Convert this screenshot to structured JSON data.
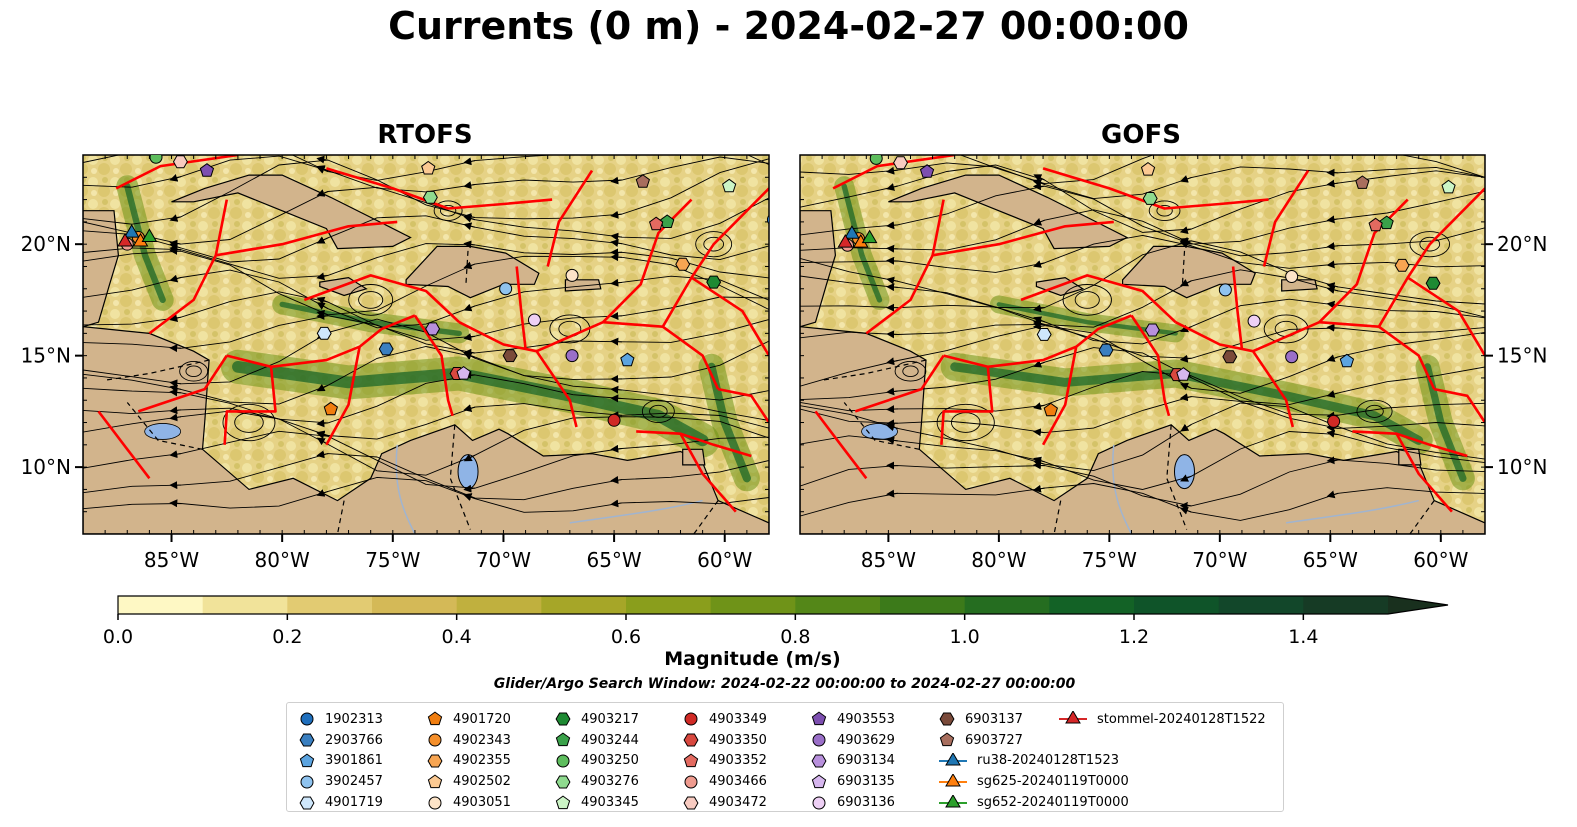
{
  "title": "Currents (0 m) - 2024-02-27 00:00:00",
  "panels": [
    {
      "name": "RTOFS"
    },
    {
      "name": "GOFS"
    }
  ],
  "colors": {
    "land": "#d2b48c",
    "boundary": "#ff0000",
    "lake": "#8fb4e6",
    "river": "#a0b4d0",
    "streamline": "#000000"
  },
  "chart_data": {
    "type": "heatmap",
    "description_of_axes": "geographic map",
    "xlim": [
      -89,
      -58
    ],
    "ylim": [
      7,
      24
    ],
    "x_ticks": [
      "85°W",
      "80°W",
      "75°W",
      "70°W",
      "65°W",
      "60°W"
    ],
    "x_tick_values": [
      -85,
      -80,
      -75,
      -70,
      -65,
      -60
    ],
    "y_ticks": [
      "10°N",
      "15°N",
      "20°N"
    ],
    "y_tick_values": [
      10,
      15,
      20
    ],
    "colorbar": {
      "label": "Magnitude (m/s)",
      "range": [
        0.0,
        1.5
      ],
      "step": 0.1,
      "extend": "max",
      "tick_labels": [
        "0.0",
        "0.2",
        "0.4",
        "0.6",
        "0.8",
        "1.0",
        "1.2",
        "1.4"
      ],
      "tick_values": [
        0.0,
        0.2,
        0.4,
        0.6,
        0.8,
        1.0,
        1.2,
        1.4
      ],
      "colors": [
        "#fef8c4",
        "#f1e39a",
        "#e2cb72",
        "#d4b957",
        "#c0b03e",
        "#a6a628",
        "#8a9e1c",
        "#6f9318",
        "#548718",
        "#3c7a1a",
        "#256d20",
        "#136226",
        "#0f5429",
        "#12472a",
        "#163b25",
        "#19301e"
      ]
    },
    "search_window": "Glider/Argo Search Window: 2024-02-22 00:00:00 to 2024-02-27 00:00:00",
    "legend": [
      {
        "label": "1902313",
        "marker": "circle",
        "color": "#1f6fbd",
        "lon": -57.8,
        "lat": 21.1
      },
      {
        "label": "2903766",
        "marker": "hexagon",
        "color": "#3a7fc0",
        "lon": -75.3,
        "lat": 15.3
      },
      {
        "label": "3901861",
        "marker": "pentagon",
        "color": "#5ca4e0",
        "lon": -64.4,
        "lat": 14.8
      },
      {
        "label": "3902457",
        "marker": "circle",
        "color": "#8fc3ef",
        "lon": -69.9,
        "lat": 18.0
      },
      {
        "label": "4901719",
        "marker": "hexagon",
        "color": "#cfe7fb",
        "lon": -78.1,
        "lat": 16.0
      },
      {
        "label": "4901720",
        "marker": "pentagon",
        "color": "#f07d0f",
        "lon": -77.8,
        "lat": 12.6
      },
      {
        "label": "4902343",
        "marker": "circle",
        "color": "#f58f2a",
        "lon": -86.5,
        "lat": 20.3
      },
      {
        "label": "4902355",
        "marker": "hexagon",
        "color": "#f7a552",
        "lon": -61.9,
        "lat": 19.1
      },
      {
        "label": "4902502",
        "marker": "pentagon",
        "color": "#fbc992",
        "lon": -73.4,
        "lat": 23.4
      },
      {
        "label": "4903051",
        "marker": "circle",
        "color": "#fde4c8",
        "lon": -66.9,
        "lat": 18.6
      },
      {
        "label": "4903217",
        "marker": "hexagon",
        "color": "#1e8a33",
        "lon": -60.5,
        "lat": 18.3
      },
      {
        "label": "4903244",
        "marker": "pentagon",
        "color": "#3aa24a",
        "lon": -62.6,
        "lat": 21.0
      },
      {
        "label": "4903250",
        "marker": "circle",
        "color": "#5dbd5d",
        "lon": -85.7,
        "lat": 23.9
      },
      {
        "label": "4903276",
        "marker": "hexagon",
        "color": "#8fdb8f",
        "lon": -73.3,
        "lat": 22.1
      },
      {
        "label": "4903345",
        "marker": "pentagon",
        "color": "#ccf5c6",
        "lon": -59.8,
        "lat": 22.6
      },
      {
        "label": "4903349",
        "marker": "circle",
        "color": "#d02a25",
        "lon": -65.0,
        "lat": 12.1
      },
      {
        "label": "4903350",
        "marker": "hexagon",
        "color": "#d8483f",
        "lon": -72.1,
        "lat": 14.2
      },
      {
        "label": "4903352",
        "marker": "pentagon",
        "color": "#e36a60",
        "lon": -63.1,
        "lat": 20.9
      },
      {
        "label": "4903466",
        "marker": "circle",
        "color": "#ef9b8f",
        "lon": -87.0,
        "lat": 20.0
      },
      {
        "label": "4903472",
        "marker": "hexagon",
        "color": "#f8cbc1",
        "lon": -84.6,
        "lat": 23.7
      },
      {
        "label": "4903553",
        "marker": "pentagon",
        "color": "#7d4fb0",
        "lon": -83.4,
        "lat": 23.3
      },
      {
        "label": "4903629",
        "marker": "circle",
        "color": "#9a6fc8",
        "lon": -66.9,
        "lat": 15.0
      },
      {
        "label": "6903134",
        "marker": "hexagon",
        "color": "#b890dc",
        "lon": -73.2,
        "lat": 16.2
      },
      {
        "label": "6903135",
        "marker": "pentagon",
        "color": "#d6b6ee",
        "lon": -71.8,
        "lat": 14.2
      },
      {
        "label": "6903136",
        "marker": "circle",
        "color": "#eed0f5",
        "lon": -68.6,
        "lat": 16.6
      },
      {
        "label": "6903137",
        "marker": "hexagon",
        "color": "#7a4a3a",
        "lon": -69.7,
        "lat": 15.0
      },
      {
        "label": "6903727",
        "marker": "pentagon",
        "color": "#a86e5e",
        "lon": -63.7,
        "lat": 22.8
      },
      {
        "label": "ru38-20240128T1523",
        "marker": "triangle",
        "color": "#1f77b4",
        "line": true,
        "lon": -86.8,
        "lat": 20.5
      },
      {
        "label": "sg625-20240119T0000",
        "marker": "triangle",
        "color": "#ff7f0e",
        "line": true,
        "lon": -86.4,
        "lat": 20.1
      },
      {
        "label": "sg652-20240119T0000",
        "marker": "triangle",
        "color": "#2ca02c",
        "line": true,
        "lon": -86.0,
        "lat": 20.3
      },
      {
        "label": "stommel-20240128T1522",
        "marker": "triangle",
        "color": "#d62728",
        "line": true,
        "lon": -87.1,
        "lat": 20.1
      }
    ]
  }
}
